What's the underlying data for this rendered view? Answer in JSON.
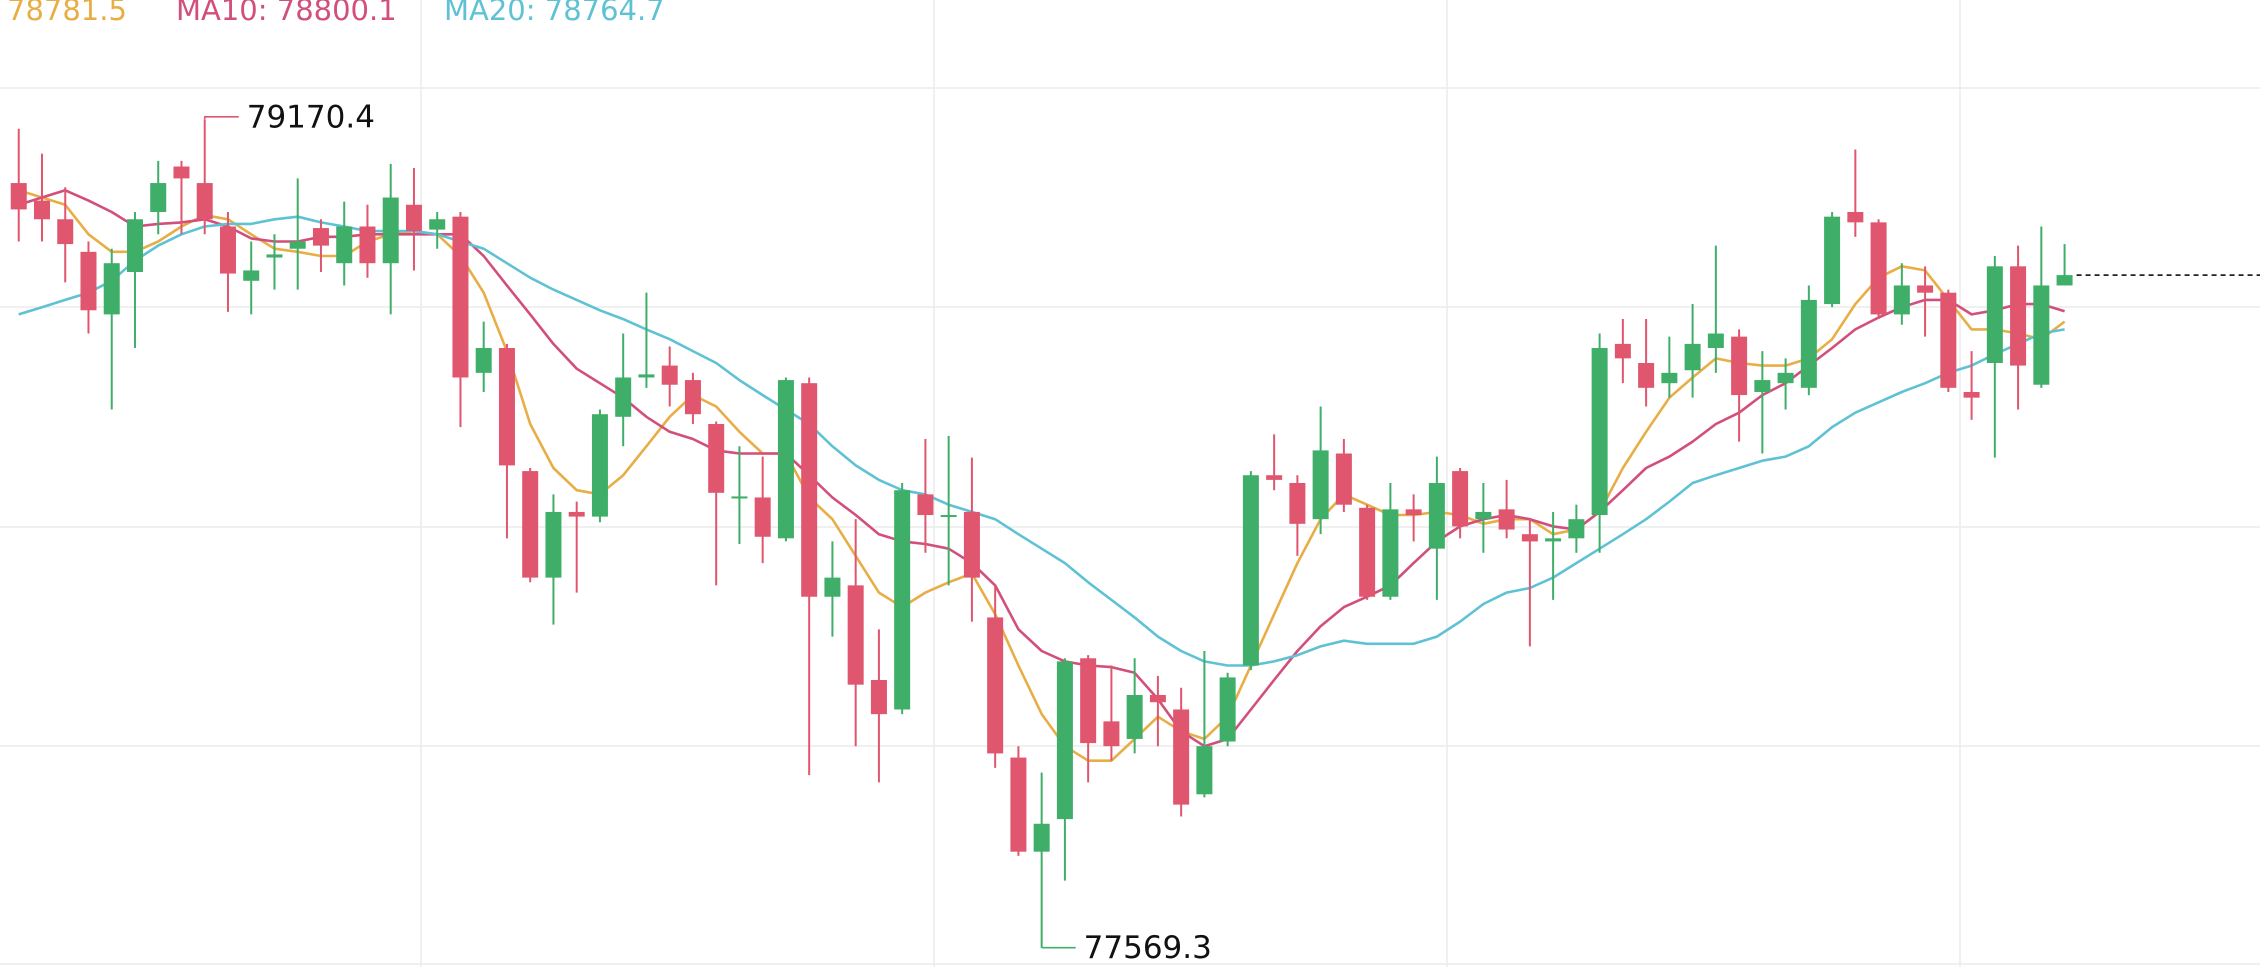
{
  "chart_data": {
    "type": "candlestick",
    "ylim": [
      77532,
      79402
    ],
    "up_color": "#3fae68",
    "down_color": "#e0566e",
    "high_label": "79170.4",
    "low_label": "77569.3",
    "open": [
      79048,
      79014,
      78978,
      78915,
      78794,
      78876,
      78992,
      79080,
      79048,
      78964,
      78859,
      78904,
      78921,
      78961,
      78893,
      78964,
      78893,
      79006,
      78958,
      78983,
      78681,
      78729,
      78491,
      78285,
      78412,
      78403,
      78596,
      78672,
      78695,
      78667,
      78582,
      78438,
      78440,
      78361,
      78661,
      78248,
      78270,
      78087,
      78030,
      78446,
      78403,
      78412,
      78208,
      77937,
      77755,
      77818,
      78129,
      78007,
      77973,
      78058,
      78030,
      77866,
      77968,
      78115,
      78483,
      78468,
      78398,
      78525,
      78420,
      78248,
      78417,
      78341,
      78491,
      78398,
      78417,
      78369,
      78355,
      78361,
      78406,
      78737,
      78700,
      78661,
      78686,
      78729,
      78751,
      78644,
      78661,
      78652,
      78814,
      78992,
      78972,
      78794,
      78850,
      78836,
      78644,
      78700,
      78887,
      78658,
      78850
    ],
    "high": [
      79153,
      79105,
      79040,
      78935,
      78921,
      78992,
      79091,
      79091,
      79170.4,
      78992,
      78935,
      78949,
      79057,
      78978,
      79012,
      79006,
      79085,
      79077,
      78992,
      78992,
      78780,
      78737,
      78497,
      78446,
      78432,
      78610,
      78757,
      78836,
      78732,
      78681,
      78587,
      78539,
      78519,
      78672,
      78672,
      78355,
      78398,
      78185,
      78468,
      78553,
      78559,
      78517,
      78270,
      77959,
      77908,
      78129,
      78135,
      78115,
      78129,
      78095,
      78072,
      78143,
      78101,
      78491,
      78562,
      78483,
      78616,
      78553,
      78426,
      78468,
      78446,
      78519,
      78497,
      78468,
      78474,
      78398,
      78412,
      78426,
      78757,
      78785,
      78785,
      78751,
      78814,
      78927,
      78765,
      78723,
      78709,
      78850,
      78992,
      79113,
      78978,
      78893,
      78887,
      78842,
      78723,
      78907,
      78927,
      78964,
      78930
    ],
    "low": [
      78935,
      78935,
      78856,
      78757,
      78610,
      78729,
      78949,
      78949,
      78949,
      78799,
      78794,
      78842,
      78842,
      78876,
      78850,
      78865,
      78794,
      78879,
      78921,
      78576,
      78644,
      78361,
      78276,
      78194,
      78256,
      78392,
      78539,
      78652,
      78616,
      78582,
      78270,
      78350,
      78313,
      78355,
      77903,
      78171,
      77959,
      77889,
      78021,
      78333,
      78270,
      78200,
      77917,
      77747,
      77569.3,
      77699,
      77889,
      77931,
      77945,
      77959,
      77823,
      77860,
      77959,
      78106,
      78454,
      78327,
      78369,
      78412,
      78242,
      78242,
      78355,
      78242,
      78361,
      78333,
      78361,
      78152,
      78242,
      78333,
      78333,
      78661,
      78616,
      78633,
      78633,
      78681,
      78548,
      78525,
      78610,
      78638,
      78808,
      78944,
      78785,
      78774,
      78751,
      78644,
      78590,
      78517,
      78610,
      78652,
      78850
    ],
    "close": [
      78997,
      78978,
      78930,
      78802,
      78893,
      78978,
      79048,
      79057,
      78978,
      78873,
      78879,
      78910,
      78935,
      78927,
      78964,
      78893,
      79020,
      78955,
      78978,
      78672,
      78729,
      78502,
      78285,
      78412,
      78403,
      78601,
      78672,
      78678,
      78658,
      78601,
      78449,
      78442,
      78364,
      78667,
      78248,
      78285,
      78078,
      78021,
      78454,
      78406,
      78406,
      78285,
      77945,
      77755,
      77809,
      78123,
      77965,
      77959,
      78058,
      78044,
      77846,
      77959,
      78092,
      78483,
      78474,
      78389,
      78531,
      78426,
      78248,
      78417,
      78406,
      78468,
      78384,
      78412,
      78378,
      78355,
      78361,
      78398,
      78729,
      78709,
      78652,
      78681,
      78737,
      78757,
      78638,
      78667,
      78681,
      78822,
      78983,
      78972,
      78794,
      78850,
      78836,
      78652,
      78633,
      78887,
      78695,
      78850,
      78870
    ],
    "series": [
      {
        "name": "78781.5",
        "color": "#e8ae45",
        "values": [
          79034,
          79020,
          79006,
          78949,
          78915,
          78915,
          78935,
          78964,
          78986,
          78978,
          78949,
          78921,
          78915,
          78907,
          78907,
          78935,
          78949,
          78955,
          78949,
          78907,
          78836,
          78723,
          78582,
          78497,
          78454,
          78446,
          78483,
          78539,
          78596,
          78638,
          78616,
          78567,
          78525,
          78525,
          78440,
          78398,
          78327,
          78256,
          78228,
          78256,
          78276,
          78293,
          78214,
          78115,
          78021,
          77959,
          77931,
          77931,
          77973,
          78016,
          77988,
          77973,
          78016,
          78115,
          78214,
          78313,
          78398,
          78446,
          78426,
          78406,
          78406,
          78412,
          78406,
          78389,
          78398,
          78398,
          78369,
          78378,
          78412,
          78497,
          78567,
          78633,
          78672,
          78709,
          78700,
          78695,
          78695,
          78709,
          78746,
          78814,
          78865,
          78887,
          78879,
          78822,
          78765,
          78765,
          78757,
          78746,
          78780
        ]
      },
      {
        "name": "MA10: 78800.1",
        "color": "#d24f7c",
        "values": [
          79006,
          79020,
          79034,
          79014,
          78992,
          78964,
          78969,
          78972,
          78978,
          78964,
          78941,
          78935,
          78935,
          78944,
          78944,
          78949,
          78949,
          78949,
          78949,
          78949,
          78907,
          78850,
          78794,
          78737,
          78689,
          78661,
          78633,
          78596,
          78567,
          78553,
          78531,
          78525,
          78525,
          78525,
          78483,
          78440,
          78406,
          78369,
          78355,
          78350,
          78341,
          78313,
          78270,
          78185,
          78143,
          78123,
          78115,
          78112,
          78101,
          78050,
          77988,
          77959,
          77973,
          78030,
          78087,
          78143,
          78191,
          78228,
          78248,
          78270,
          78313,
          78355,
          78384,
          78398,
          78406,
          78398,
          78384,
          78378,
          78412,
          78454,
          78497,
          78519,
          78548,
          78582,
          78604,
          78638,
          78661,
          78695,
          78729,
          78765,
          78788,
          78808,
          78822,
          78822,
          78794,
          78802,
          78814,
          78814,
          78800
        ]
      },
      {
        "name": "MA20: 78764.7",
        "color": "#5fc2d4",
        "values": [
          78794,
          78808,
          78822,
          78836,
          78859,
          78898,
          78927,
          78949,
          78964,
          78969,
          78969,
          78978,
          78983,
          78972,
          78964,
          78955,
          78955,
          78955,
          78949,
          78935,
          78921,
          78893,
          78865,
          78842,
          78822,
          78802,
          78785,
          78765,
          78746,
          78723,
          78700,
          78667,
          78638,
          78610,
          78582,
          78539,
          78502,
          78474,
          78454,
          78446,
          78426,
          78412,
          78398,
          78369,
          78341,
          78313,
          78276,
          78242,
          78208,
          78171,
          78143,
          78123,
          78115,
          78115,
          78123,
          78135,
          78152,
          78163,
          78157,
          78157,
          78157,
          78171,
          78200,
          78234,
          78256,
          78265,
          78285,
          78313,
          78341,
          78369,
          78398,
          78432,
          78468,
          78483,
          78497,
          78511,
          78519,
          78539,
          78576,
          78604,
          78624,
          78644,
          78661,
          78681,
          78695,
          78717,
          78737,
          78757,
          78765
        ]
      }
    ]
  }
}
